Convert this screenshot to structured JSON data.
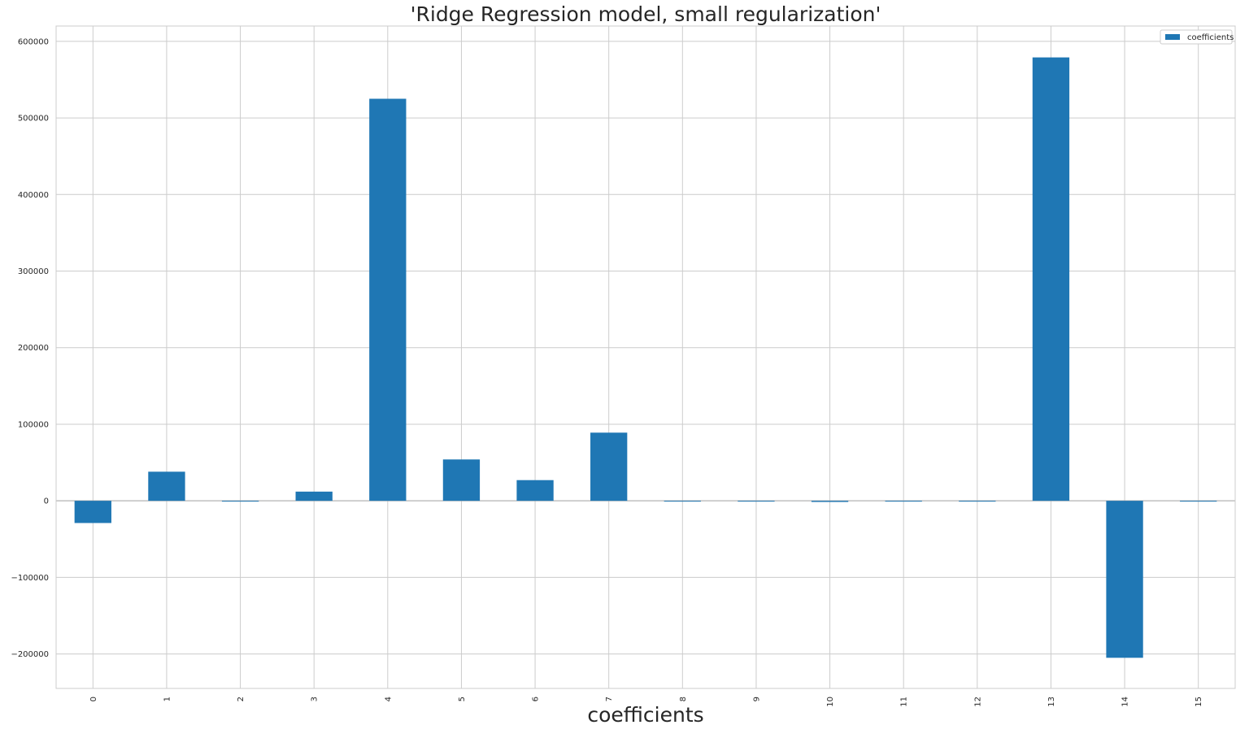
{
  "chart_data": {
    "type": "bar",
    "title": "'Ridge Regression model, small regularization'",
    "xlabel": "coefficients",
    "ylabel": "",
    "categories": [
      "0",
      "1",
      "2",
      "3",
      "4",
      "5",
      "6",
      "7",
      "8",
      "9",
      "10",
      "11",
      "12",
      "13",
      "14",
      "15"
    ],
    "series": [
      {
        "name": "coefficients",
        "color": "#1f77b4",
        "values": [
          -29000,
          38000,
          -200,
          12000,
          525000,
          54000,
          27000,
          89000,
          -300,
          -600,
          -1500,
          -400,
          -300,
          579000,
          -205000,
          -300
        ]
      }
    ],
    "ylim": [
      -245000,
      620000
    ],
    "yticks": [
      -200000,
      -100000,
      0,
      100000,
      200000,
      300000,
      400000,
      500000,
      600000
    ],
    "ytick_labels": [
      "−200000",
      "−100000",
      "0",
      "100000",
      "200000",
      "300000",
      "400000",
      "500000",
      "600000"
    ],
    "grid": true,
    "legend_position": "top-right",
    "style": {
      "grid_color": "#cccccc",
      "axes_edge_color": "#cccccc",
      "text_color": "#262626"
    }
  }
}
